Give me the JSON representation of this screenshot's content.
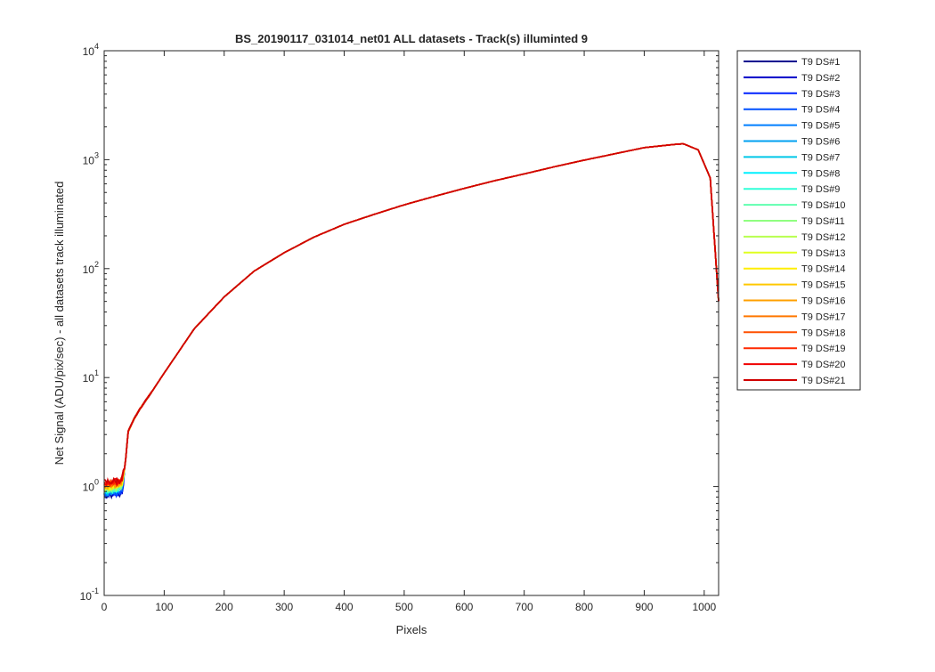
{
  "chart_data": {
    "type": "line",
    "title": "BS_20190117_031014_net01 ALL datasets - Track(s) illuminted 9",
    "xlabel": "Pixels",
    "ylabel": "Net Signal (ADU/pix/sec) - all datasets track illuminated",
    "xlim": [
      0,
      1024
    ],
    "ylim": [
      0.1,
      10000
    ],
    "yscale": "log",
    "x_ticks": [
      0,
      100,
      200,
      300,
      400,
      500,
      600,
      700,
      800,
      900,
      1000
    ],
    "y_ticks": [
      {
        "base": "10",
        "exp": "-1",
        "value": 0.1
      },
      {
        "base": "10",
        "exp": "0",
        "value": 1
      },
      {
        "base": "10",
        "exp": "1",
        "value": 10
      },
      {
        "base": "10",
        "exp": "2",
        "value": 100
      },
      {
        "base": "10",
        "exp": "3",
        "value": 1000
      },
      {
        "base": "10",
        "exp": "4",
        "value": 10000
      }
    ],
    "grid": false,
    "legend_position": "outside-right-top",
    "x": [
      0,
      10,
      20,
      25,
      30,
      35,
      40,
      50,
      60,
      80,
      100,
      150,
      200,
      250,
      300,
      350,
      400,
      450,
      500,
      550,
      600,
      650,
      700,
      750,
      800,
      850,
      900,
      950,
      965,
      990,
      1010,
      1024
    ],
    "base_values": [
      0.95,
      0.97,
      0.98,
      0.99,
      1.05,
      1.6,
      3.2,
      4.2,
      5.2,
      7.5,
      11,
      28,
      55,
      95,
      140,
      195,
      255,
      315,
      385,
      460,
      545,
      640,
      740,
      860,
      990,
      1130,
      1290,
      1380,
      1400,
      1230,
      680,
      50
    ],
    "series": [
      {
        "name": "T9 DS#1",
        "color": "#00008F"
      },
      {
        "name": "T9 DS#2",
        "color": "#0000C8"
      },
      {
        "name": "T9 DS#3",
        "color": "#0022FF"
      },
      {
        "name": "T9 DS#4",
        "color": "#0050FF"
      },
      {
        "name": "T9 DS#5",
        "color": "#007FFF"
      },
      {
        "name": "T9 DS#6",
        "color": "#00A0F0"
      },
      {
        "name": "T9 DS#7",
        "color": "#00C8E8"
      },
      {
        "name": "T9 DS#8",
        "color": "#00F0FF"
      },
      {
        "name": "T9 DS#9",
        "color": "#30FFD8"
      },
      {
        "name": "T9 DS#10",
        "color": "#60FFB0"
      },
      {
        "name": "T9 DS#11",
        "color": "#90FF80"
      },
      {
        "name": "T9 DS#12",
        "color": "#B8FF50"
      },
      {
        "name": "T9 DS#13",
        "color": "#E0FF20"
      },
      {
        "name": "T9 DS#14",
        "color": "#FFEE00"
      },
      {
        "name": "T9 DS#15",
        "color": "#FFC800"
      },
      {
        "name": "T9 DS#16",
        "color": "#FFA000"
      },
      {
        "name": "T9 DS#17",
        "color": "#FF7800"
      },
      {
        "name": "T9 DS#18",
        "color": "#FF5000"
      },
      {
        "name": "T9 DS#19",
        "color": "#FF2800"
      },
      {
        "name": "T9 DS#20",
        "color": "#F00000"
      },
      {
        "name": "T9 DS#21",
        "color": "#D00000"
      }
    ]
  }
}
